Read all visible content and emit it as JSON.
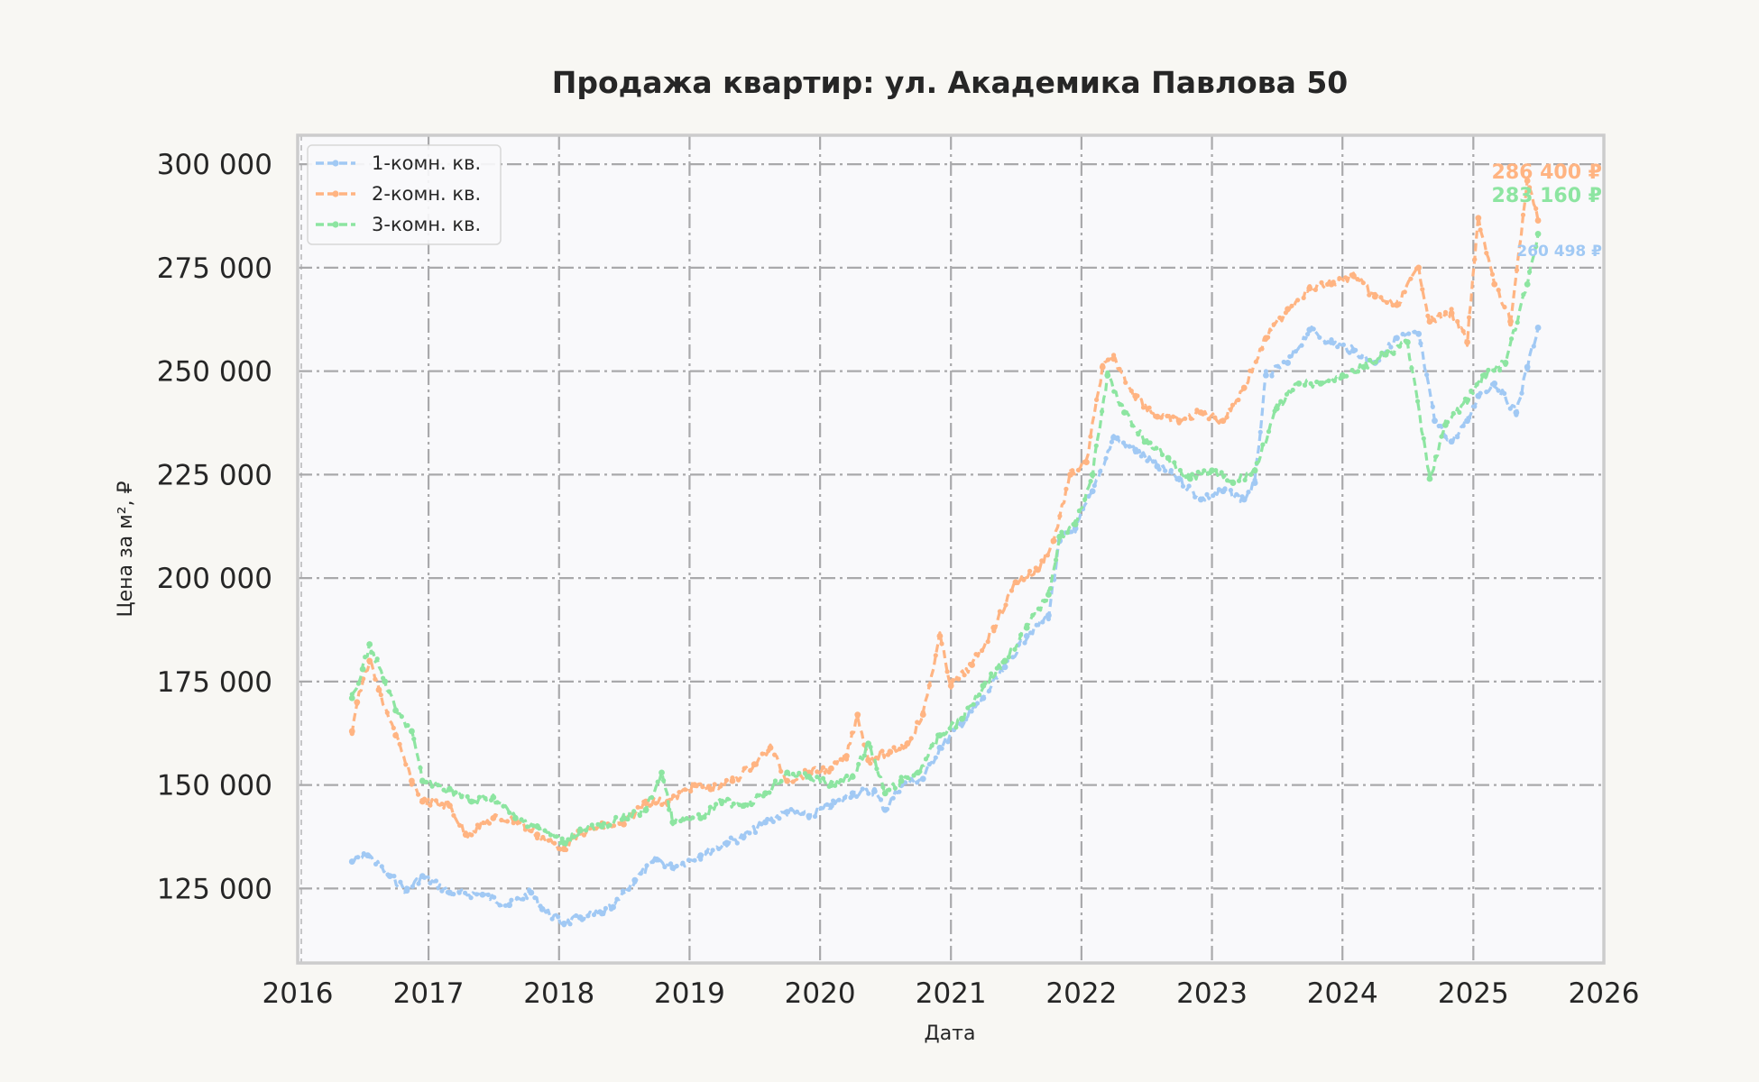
{
  "chart_data": {
    "type": "line",
    "title": "Продажа квартир: ул. Академика Павлова 50",
    "xlabel": "Дата",
    "ylabel": "Цена за м², ₽",
    "xlim": [
      "2016-01-01",
      "2026-01-01"
    ],
    "ylim": [
      107000,
      307000
    ],
    "x_ticks": [
      "2016",
      "2017",
      "2018",
      "2019",
      "2020",
      "2021",
      "2022",
      "2023",
      "2024",
      "2025",
      "2026"
    ],
    "y_ticks": [
      "125 000",
      "150 000",
      "175 000",
      "200 000",
      "225 000",
      "250 000",
      "275 000",
      "300 000"
    ],
    "y_tick_values": [
      125000,
      150000,
      175000,
      200000,
      225000,
      250000,
      275000,
      300000
    ],
    "grid": true,
    "legend_position": "top-left",
    "series": [
      {
        "name": "1-комн. кв.",
        "color": "#a1c9f4",
        "end_label": "260 498 ₽",
        "points": [
          [
            "2016-06-01",
            131500
          ],
          [
            "2016-07-15",
            133000
          ],
          [
            "2016-09-15",
            128000
          ],
          [
            "2016-11-01",
            124500
          ],
          [
            "2016-12-15",
            128000
          ],
          [
            "2017-03-01",
            124000
          ],
          [
            "2017-06-01",
            123500
          ],
          [
            "2017-08-15",
            121000
          ],
          [
            "2017-10-15",
            124000
          ],
          [
            "2017-11-15",
            120000
          ],
          [
            "2018-01-15",
            116500
          ],
          [
            "2018-03-01",
            118000
          ],
          [
            "2018-05-01",
            119000
          ],
          [
            "2018-06-01",
            120500
          ],
          [
            "2018-08-01",
            127000
          ],
          [
            "2018-10-01",
            132000
          ],
          [
            "2018-11-15",
            130000
          ],
          [
            "2019-02-01",
            133000
          ],
          [
            "2019-04-15",
            136000
          ],
          [
            "2019-06-01",
            137500
          ],
          [
            "2019-08-01",
            141000
          ],
          [
            "2019-10-01",
            143500
          ],
          [
            "2019-12-01",
            142500
          ],
          [
            "2020-02-01",
            145000
          ],
          [
            "2020-04-01",
            148000
          ],
          [
            "2020-06-01",
            148500
          ],
          [
            "2020-07-01",
            144000
          ],
          [
            "2020-08-15",
            150000
          ],
          [
            "2020-10-15",
            151500
          ],
          [
            "2020-12-01",
            159000
          ],
          [
            "2021-02-01",
            165000
          ],
          [
            "2021-04-01",
            171000
          ],
          [
            "2021-06-01",
            178500
          ],
          [
            "2021-08-01",
            186000
          ],
          [
            "2021-10-01",
            191000
          ],
          [
            "2021-11-01",
            209000
          ],
          [
            "2021-12-15",
            212000
          ],
          [
            "2022-02-01",
            221000
          ],
          [
            "2022-04-01",
            234000
          ],
          [
            "2022-06-01",
            231000
          ],
          [
            "2022-08-01",
            227000
          ],
          [
            "2022-10-01",
            224000
          ],
          [
            "2022-12-01",
            219000
          ],
          [
            "2023-02-01",
            221000
          ],
          [
            "2023-04-01",
            219000
          ],
          [
            "2023-05-01",
            223000
          ],
          [
            "2023-06-01",
            249000
          ],
          [
            "2023-08-01",
            252000
          ],
          [
            "2023-10-01",
            260000
          ],
          [
            "2023-12-01",
            257000
          ],
          [
            "2024-02-01",
            255000
          ],
          [
            "2024-04-01",
            252000
          ],
          [
            "2024-06-01",
            258000
          ],
          [
            "2024-08-01",
            259000
          ],
          [
            "2024-09-15",
            238000
          ],
          [
            "2024-11-01",
            233000
          ],
          [
            "2024-12-15",
            238000
          ],
          [
            "2025-01-15",
            244000
          ],
          [
            "2025-03-01",
            247000
          ],
          [
            "2025-05-01",
            240000
          ],
          [
            "2025-06-01",
            251000
          ],
          [
            "2025-07-01",
            260498
          ]
        ]
      },
      {
        "name": "2-комн. кв.",
        "color": "#ffb482",
        "end_label": "286 400 ₽",
        "points": [
          [
            "2016-06-01",
            163000
          ],
          [
            "2016-06-15",
            170000
          ],
          [
            "2016-07-20",
            180000
          ],
          [
            "2016-08-15",
            173000
          ],
          [
            "2016-10-01",
            162000
          ],
          [
            "2016-11-15",
            151000
          ],
          [
            "2016-12-15",
            146000
          ],
          [
            "2017-03-01",
            145000
          ],
          [
            "2017-04-15",
            138000
          ],
          [
            "2017-07-01",
            142000
          ],
          [
            "2017-09-01",
            141500
          ],
          [
            "2017-11-01",
            138000
          ],
          [
            "2018-01-15",
            134500
          ],
          [
            "2018-03-01",
            138500
          ],
          [
            "2018-05-01",
            140000
          ],
          [
            "2018-07-01",
            140500
          ],
          [
            "2018-09-01",
            146000
          ],
          [
            "2018-11-01",
            146000
          ],
          [
            "2019-01-15",
            150000
          ],
          [
            "2019-03-01",
            149000
          ],
          [
            "2019-05-01",
            151000
          ],
          [
            "2019-07-01",
            155000
          ],
          [
            "2019-08-15",
            159000
          ],
          [
            "2019-10-01",
            151000
          ],
          [
            "2019-12-01",
            153000
          ],
          [
            "2020-02-01",
            154000
          ],
          [
            "2020-03-15",
            157000
          ],
          [
            "2020-04-15",
            167000
          ],
          [
            "2020-05-15",
            156000
          ],
          [
            "2020-07-15",
            158000
          ],
          [
            "2020-09-01",
            160000
          ],
          [
            "2020-10-15",
            167000
          ],
          [
            "2020-12-01",
            186000
          ],
          [
            "2021-01-01",
            174000
          ],
          [
            "2021-03-01",
            179000
          ],
          [
            "2021-05-01",
            188000
          ],
          [
            "2021-07-01",
            199000
          ],
          [
            "2021-09-01",
            202000
          ],
          [
            "2021-10-15",
            209000
          ],
          [
            "2021-12-01",
            225000
          ],
          [
            "2022-01-15",
            228000
          ],
          [
            "2022-03-01",
            251000
          ],
          [
            "2022-04-01",
            253000
          ],
          [
            "2022-06-01",
            244000
          ],
          [
            "2022-08-01",
            239000
          ],
          [
            "2022-10-01",
            238000
          ],
          [
            "2022-12-01",
            240000
          ],
          [
            "2023-02-01",
            238000
          ],
          [
            "2023-04-01",
            246000
          ],
          [
            "2023-06-01",
            258000
          ],
          [
            "2023-08-01",
            265000
          ],
          [
            "2023-10-01",
            270000
          ],
          [
            "2023-12-01",
            271000
          ],
          [
            "2024-02-01",
            273000
          ],
          [
            "2024-04-01",
            268000
          ],
          [
            "2024-06-01",
            266000
          ],
          [
            "2024-08-01",
            275000
          ],
          [
            "2024-09-01",
            262000
          ],
          [
            "2024-11-01",
            264000
          ],
          [
            "2024-12-15",
            257000
          ],
          [
            "2025-01-15",
            287000
          ],
          [
            "2025-03-01",
            271000
          ],
          [
            "2025-04-15",
            262000
          ],
          [
            "2025-06-01",
            296000
          ],
          [
            "2025-07-01",
            286400
          ]
        ]
      },
      {
        "name": "3-комн. кв.",
        "color": "#8de5a1",
        "end_label": "283 160 ₽",
        "points": [
          [
            "2016-06-01",
            171000
          ],
          [
            "2016-07-01",
            178000
          ],
          [
            "2016-07-20",
            184000
          ],
          [
            "2016-09-01",
            175000
          ],
          [
            "2016-10-01",
            168000
          ],
          [
            "2016-11-15",
            163000
          ],
          [
            "2016-12-15",
            151000
          ],
          [
            "2017-03-01",
            149000
          ],
          [
            "2017-05-01",
            146000
          ],
          [
            "2017-07-01",
            147000
          ],
          [
            "2017-09-01",
            142000
          ],
          [
            "2017-11-01",
            140000
          ],
          [
            "2018-01-15",
            136000
          ],
          [
            "2018-03-01",
            139000
          ],
          [
            "2018-05-01",
            140000
          ],
          [
            "2018-07-01",
            142000
          ],
          [
            "2018-09-01",
            144000
          ],
          [
            "2018-10-15",
            153000
          ],
          [
            "2018-11-15",
            141000
          ],
          [
            "2019-02-01",
            142000
          ],
          [
            "2019-04-01",
            146000
          ],
          [
            "2019-06-01",
            145000
          ],
          [
            "2019-08-01",
            148000
          ],
          [
            "2019-10-01",
            153000
          ],
          [
            "2019-12-01",
            152000
          ],
          [
            "2020-02-01",
            150000
          ],
          [
            "2020-04-01",
            152000
          ],
          [
            "2020-05-15",
            160000
          ],
          [
            "2020-07-01",
            148000
          ],
          [
            "2020-08-15",
            151000
          ],
          [
            "2020-10-01",
            153000
          ],
          [
            "2020-12-01",
            162000
          ],
          [
            "2021-02-01",
            166000
          ],
          [
            "2021-04-01",
            174000
          ],
          [
            "2021-06-01",
            180000
          ],
          [
            "2021-08-01",
            188000
          ],
          [
            "2021-10-01",
            196000
          ],
          [
            "2021-11-01",
            210000
          ],
          [
            "2021-12-15",
            213000
          ],
          [
            "2022-02-01",
            225000
          ],
          [
            "2022-03-15",
            249000
          ],
          [
            "2022-05-01",
            240000
          ],
          [
            "2022-07-01",
            233000
          ],
          [
            "2022-09-01",
            229000
          ],
          [
            "2022-11-01",
            224000
          ],
          [
            "2023-01-01",
            226000
          ],
          [
            "2023-03-01",
            223000
          ],
          [
            "2023-05-01",
            226000
          ],
          [
            "2023-07-01",
            241000
          ],
          [
            "2023-09-01",
            247000
          ],
          [
            "2023-11-01",
            247000
          ],
          [
            "2024-01-01",
            249000
          ],
          [
            "2024-03-01",
            251000
          ],
          [
            "2024-05-01",
            254000
          ],
          [
            "2024-07-01",
            257000
          ],
          [
            "2024-09-01",
            224000
          ],
          [
            "2024-10-15",
            237000
          ],
          [
            "2024-12-15",
            243000
          ],
          [
            "2025-02-01",
            249000
          ],
          [
            "2025-04-01",
            252000
          ],
          [
            "2025-06-01",
            271000
          ],
          [
            "2025-07-01",
            283160
          ]
        ]
      }
    ]
  }
}
